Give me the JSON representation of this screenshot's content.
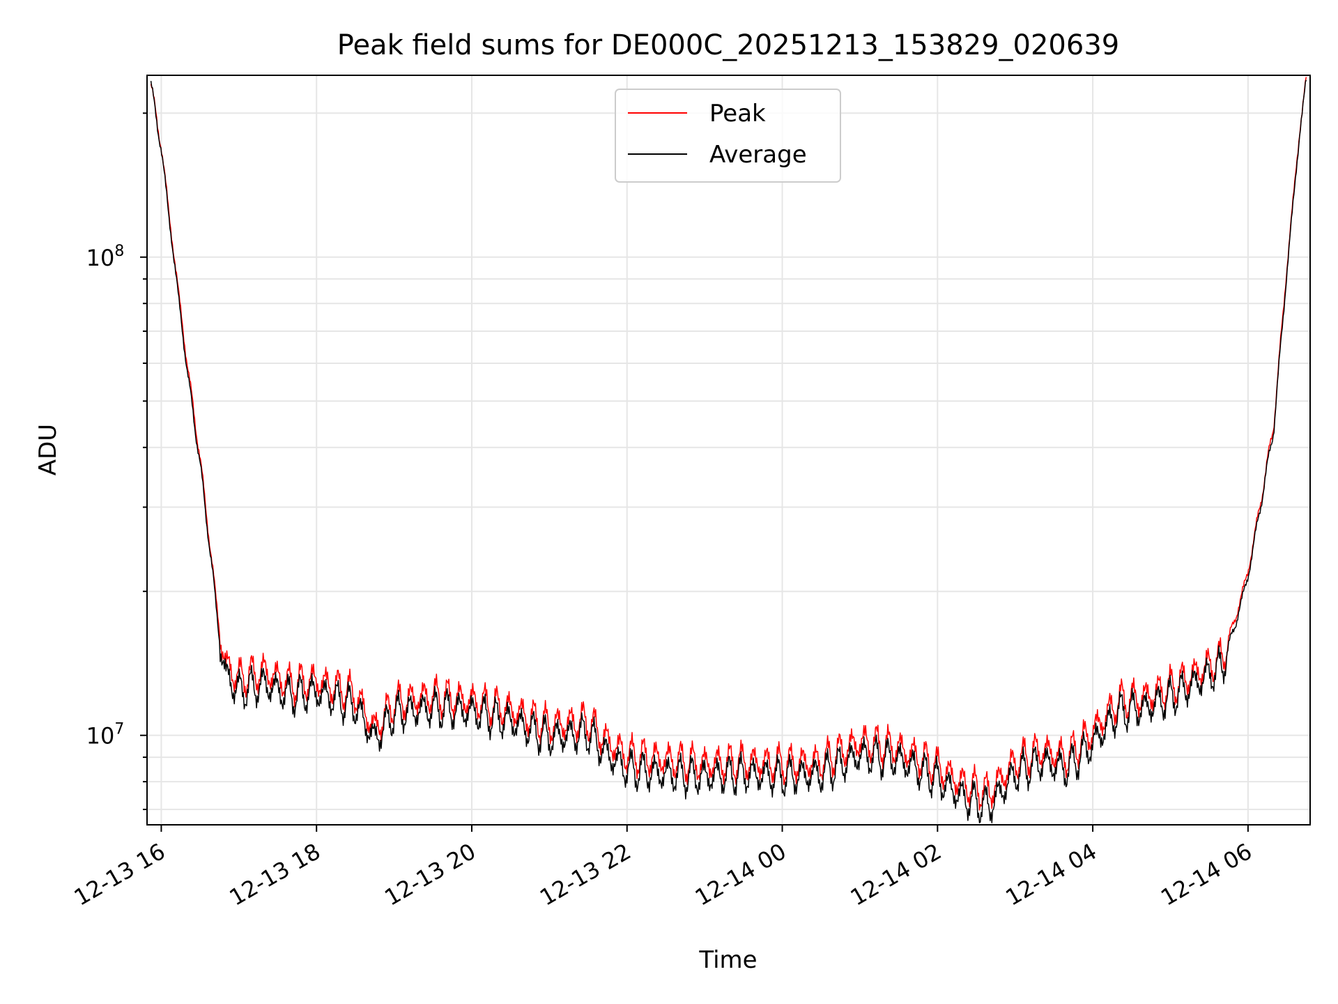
{
  "chart_data": {
    "type": "line",
    "title": "Peak field sums for DE000C_20251213_153829_020639",
    "xlabel": "Time",
    "ylabel": "ADU",
    "yscale": "log",
    "xlim": [
      "2025-12-13 15:49",
      "2025-12-14 06:48"
    ],
    "ylim": [
      6500000,
      240000000
    ],
    "grid": true,
    "legend_position": "upper center",
    "xticks": [
      "12-13 16",
      "12-13 18",
      "12-13 20",
      "12-13 22",
      "12-14 00",
      "12-14 02",
      "12-14 04",
      "12-14 06"
    ],
    "xtick_times": [
      "2025-12-13 16:00",
      "2025-12-13 18:00",
      "2025-12-13 20:00",
      "2025-12-13 22:00",
      "2025-12-14 00:00",
      "2025-12-14 02:00",
      "2025-12-14 04:00",
      "2025-12-14 06:00"
    ],
    "yticks": [
      {
        "base": "10",
        "exp": "7",
        "value": 10000000
      },
      {
        "base": "10",
        "exp": "8",
        "value": 100000000
      }
    ],
    "x": [
      "2025-12-13 15:52",
      "2025-12-13 16:00",
      "2025-12-13 16:10",
      "2025-12-13 16:20",
      "2025-12-13 16:30",
      "2025-12-13 16:40",
      "2025-12-13 16:45",
      "2025-12-13 16:50",
      "2025-12-13 17:00",
      "2025-12-13 17:20",
      "2025-12-13 17:40",
      "2025-12-13 18:00",
      "2025-12-13 18:30",
      "2025-12-13 18:45",
      "2025-12-13 19:00",
      "2025-12-13 19:30",
      "2025-12-13 20:00",
      "2025-12-13 20:30",
      "2025-12-13 21:00",
      "2025-12-13 21:30",
      "2025-12-13 21:45",
      "2025-12-13 22:00",
      "2025-12-13 22:30",
      "2025-12-13 23:00",
      "2025-12-13 23:30",
      "2025-12-14 00:00",
      "2025-12-14 00:30",
      "2025-12-14 01:00",
      "2025-12-14 01:30",
      "2025-12-14 02:00",
      "2025-12-14 02:20",
      "2025-12-14 02:40",
      "2025-12-14 03:00",
      "2025-12-14 03:20",
      "2025-12-14 03:40",
      "2025-12-14 04:00",
      "2025-12-14 04:20",
      "2025-12-14 04:40",
      "2025-12-14 05:00",
      "2025-12-14 05:20",
      "2025-12-14 05:40",
      "2025-12-14 05:50",
      "2025-12-14 06:00",
      "2025-12-14 06:10",
      "2025-12-14 06:20",
      "2025-12-14 06:30",
      "2025-12-14 06:40",
      "2025-12-14 06:45"
    ],
    "series": [
      {
        "name": "Peak",
        "color": "#ff0000",
        "values": [
          230000000,
          170000000,
          100000000,
          60000000,
          38000000,
          22000000,
          16500000,
          14000000,
          13200000,
          13600000,
          12800000,
          13000000,
          12200000,
          10300000,
          11700000,
          12100000,
          11800000,
          11300000,
          10500000,
          10700000,
          9700000,
          9100000,
          8900000,
          8700000,
          8800000,
          8700000,
          8800000,
          9700000,
          9400000,
          8600000,
          7900000,
          7600000,
          8800000,
          9300000,
          9000000,
          10200000,
          11800000,
          12000000,
          12600000,
          13500000,
          14500000,
          17500000,
          22000000,
          31000000,
          45000000,
          95000000,
          185000000,
          235000000
        ]
      },
      {
        "name": "Average",
        "color": "#000000",
        "values": [
          230000000,
          168000000,
          98000000,
          58000000,
          37000000,
          21500000,
          15800000,
          13300000,
          12400000,
          12800000,
          12100000,
          12300000,
          11500000,
          9800000,
          11100000,
          11400000,
          11200000,
          10700000,
          9900000,
          10100000,
          9100000,
          8500000,
          8300000,
          8200000,
          8300000,
          8200000,
          8300000,
          9100000,
          8900000,
          8100000,
          7400000,
          7100000,
          8300000,
          8800000,
          8500000,
          9600000,
          11200000,
          11400000,
          12000000,
          12900000,
          13900000,
          17000000,
          21500000,
          30500000,
          44000000,
          93000000,
          183000000,
          233000000
        ]
      }
    ]
  }
}
